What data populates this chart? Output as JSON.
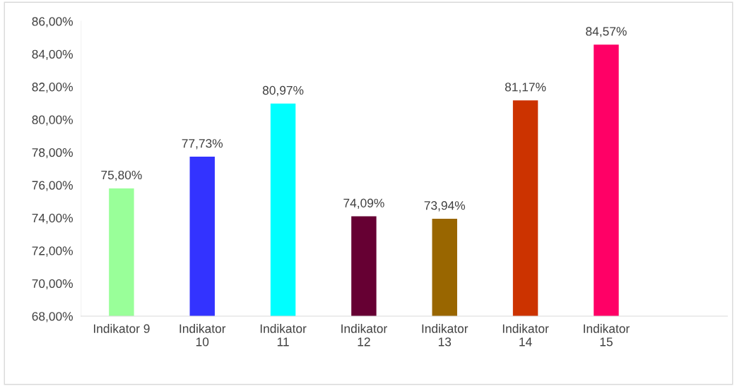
{
  "chart_data": {
    "type": "bar",
    "categories": [
      "Indikator 9",
      "Indikator 10",
      "Indikator 11",
      "Indikator 12",
      "Indikator 13",
      "Indikator 14",
      "Indikator 15",
      null
    ],
    "values": [
      75.8,
      77.73,
      80.97,
      74.09,
      73.94,
      81.17,
      84.57,
      null
    ],
    "colors": [
      "#99ff99",
      "#3333ff",
      "#00ffff",
      "#660033",
      "#996600",
      "#cc3300",
      "#ff0066",
      "#ffffff"
    ],
    "value_labels": [
      "75,80%",
      "77,73%",
      "80,97%",
      "74,09%",
      "73,94%",
      "81,17%",
      "84,57%",
      null
    ],
    "ylim": [
      68,
      86
    ],
    "yticks": [
      {
        "value": 68,
        "label": "68,00%"
      },
      {
        "value": 70,
        "label": "70,00%"
      },
      {
        "value": 72,
        "label": "72,00%"
      },
      {
        "value": 74,
        "label": "74,00%"
      },
      {
        "value": 76,
        "label": "76,00%"
      },
      {
        "value": 78,
        "label": "78,00%"
      },
      {
        "value": 80,
        "label": "80,00%"
      },
      {
        "value": 82,
        "label": "82,00%"
      },
      {
        "value": 84,
        "label": "84,00%"
      },
      {
        "value": 86,
        "label": "86,00%"
      }
    ]
  }
}
